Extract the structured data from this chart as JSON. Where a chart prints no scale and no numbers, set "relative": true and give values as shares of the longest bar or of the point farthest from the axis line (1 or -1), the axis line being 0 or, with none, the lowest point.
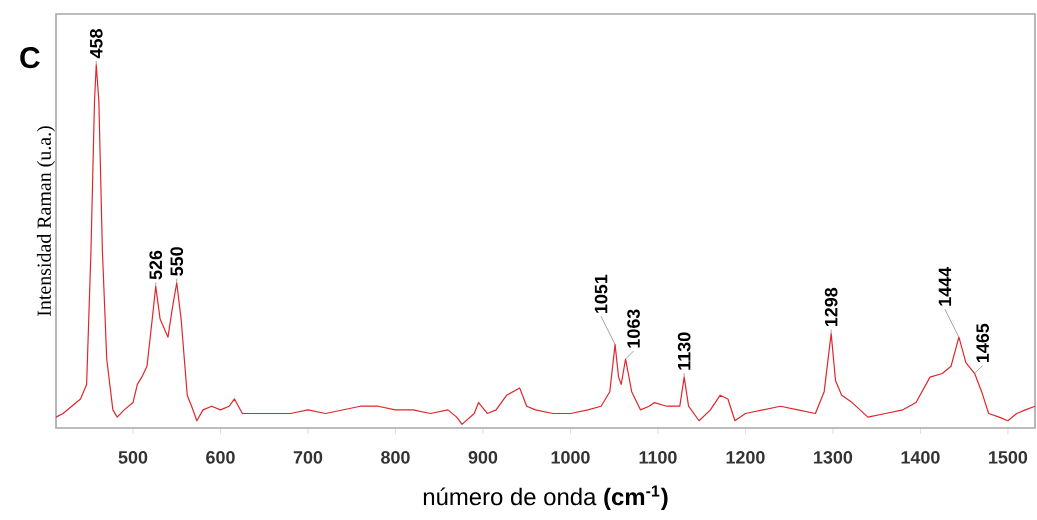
{
  "chart_data": {
    "type": "line",
    "title": "C",
    "xlabel": "número de onda **(cm$^{-1}$)**",
    "ylabel": "Intensidad Raman (u.a.)",
    "relative": true,
    "x": [
      412,
      420,
      430,
      440,
      447,
      452,
      456,
      458,
      461,
      465,
      470,
      477,
      482,
      490,
      500,
      505,
      510,
      516,
      522,
      526,
      531,
      540,
      545,
      550,
      555,
      562,
      567,
      573,
      580,
      590,
      600,
      610,
      616,
      625,
      640,
      660,
      680,
      700,
      720,
      740,
      760,
      780,
      800,
      820,
      840,
      860,
      870,
      876,
      890,
      895,
      905,
      915,
      927,
      942,
      950,
      960,
      980,
      1000,
      1020,
      1035,
      1045,
      1051,
      1055,
      1058,
      1063,
      1070,
      1080,
      1090,
      1096,
      1110,
      1125,
      1130,
      1135,
      1147,
      1160,
      1171,
      1180,
      1188,
      1200,
      1220,
      1240,
      1260,
      1280,
      1290,
      1298,
      1303,
      1310,
      1322,
      1340,
      1360,
      1380,
      1395,
      1411,
      1425,
      1435,
      1444,
      1452,
      1462,
      1470,
      1478,
      1490,
      1500,
      1510,
      1520,
      1531
    ],
    "series": [
      {
        "color": "#e0262b",
        "values": [
          0.03,
          0.04,
          0.06,
          0.08,
          0.12,
          0.49,
          0.9,
          1,
          0.9,
          0.49,
          0.19,
          0.05,
          0.03,
          0.05,
          0.07,
          0.12,
          0.14,
          0.17,
          0.3,
          0.39,
          0.3,
          0.25,
          0.33,
          0.4,
          0.3,
          0.09,
          0.06,
          0.02,
          0.05,
          0.06,
          0.05,
          0.06,
          0.08,
          0.04,
          0.04,
          0.04,
          0.04,
          0.05,
          0.04,
          0.05,
          0.06,
          0.06,
          0.05,
          0.05,
          0.04,
          0.05,
          0.03,
          0.01,
          0.04,
          0.07,
          0.04,
          0.05,
          0.09,
          0.11,
          0.06,
          0.05,
          0.04,
          0.04,
          0.05,
          0.06,
          0.1,
          0.23,
          0.14,
          0.12,
          0.19,
          0.1,
          0.05,
          0.06,
          0.07,
          0.06,
          0.06,
          0.14,
          0.06,
          0.02,
          0.05,
          0.09,
          0.08,
          0.02,
          0.04,
          0.05,
          0.06,
          0.05,
          0.04,
          0.1,
          0.26,
          0.13,
          0.09,
          0.07,
          0.03,
          0.04,
          0.05,
          0.07,
          0.14,
          0.15,
          0.17,
          0.25,
          0.18,
          0.15,
          0.1,
          0.04,
          0.03,
          0.02,
          0.04,
          0.05,
          0.06
        ]
      }
    ],
    "xlim": [
      412,
      1531
    ],
    "xticks": [
      500,
      600,
      700,
      800,
      900,
      1000,
      1100,
      1200,
      1300,
      1400,
      1500
    ],
    "annotations": [
      {
        "text": "458",
        "x": 458,
        "y": 1
      },
      {
        "text": "526",
        "x": 526,
        "y": 0.39
      },
      {
        "text": "550",
        "x": 550,
        "y": 0.4
      },
      {
        "text": "1051",
        "x": 1051,
        "y": 0.23
      },
      {
        "text": "1063",
        "x": 1063,
        "y": 0.19
      },
      {
        "text": "1130",
        "x": 1130,
        "y": 0.14
      },
      {
        "text": "1298",
        "x": 1298,
        "y": 0.26
      },
      {
        "text": "1444",
        "x": 1444,
        "y": 0.25
      },
      {
        "text": "1465",
        "x": 1462,
        "y": 0.15
      }
    ],
    "grid": false,
    "marker": "none",
    "line_style": "solid"
  }
}
